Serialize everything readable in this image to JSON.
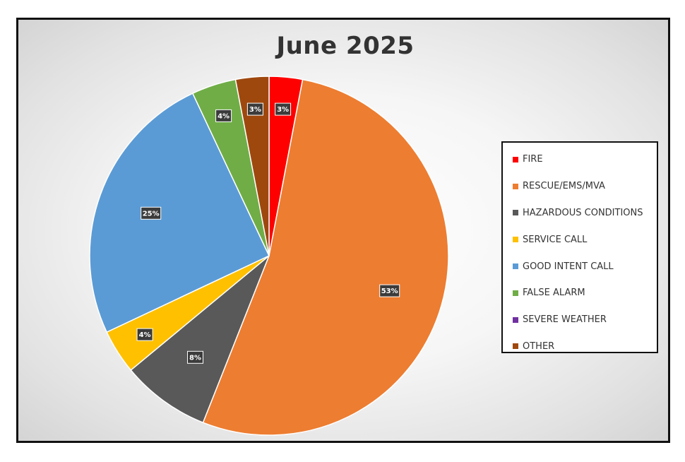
{
  "chart_data": {
    "type": "pie",
    "title": "June 2025",
    "legend_position": "right",
    "slices": [
      {
        "name": "FIRE",
        "value": 3,
        "label": "3%",
        "color": "#ff0000"
      },
      {
        "name": "RESCUE/EMS/MVA",
        "value": 53,
        "label": "53%",
        "color": "#ed7d31"
      },
      {
        "name": "HAZARDOUS CONDITIONS",
        "value": 8,
        "label": "8%",
        "color": "#595959"
      },
      {
        "name": "SERVICE CALL",
        "value": 4,
        "label": "4%",
        "color": "#ffc000"
      },
      {
        "name": "GOOD INTENT CALL",
        "value": 25,
        "label": "25%",
        "color": "#5b9bd5"
      },
      {
        "name": "FALSE ALARM",
        "value": 4,
        "label": "4%",
        "color": "#70ad47"
      },
      {
        "name": "SEVERE WEATHER",
        "value": 0,
        "label": "",
        "color": "#7030a0"
      },
      {
        "name": "OTHER",
        "value": 3,
        "label": "3%",
        "color": "#9e480e"
      }
    ]
  }
}
